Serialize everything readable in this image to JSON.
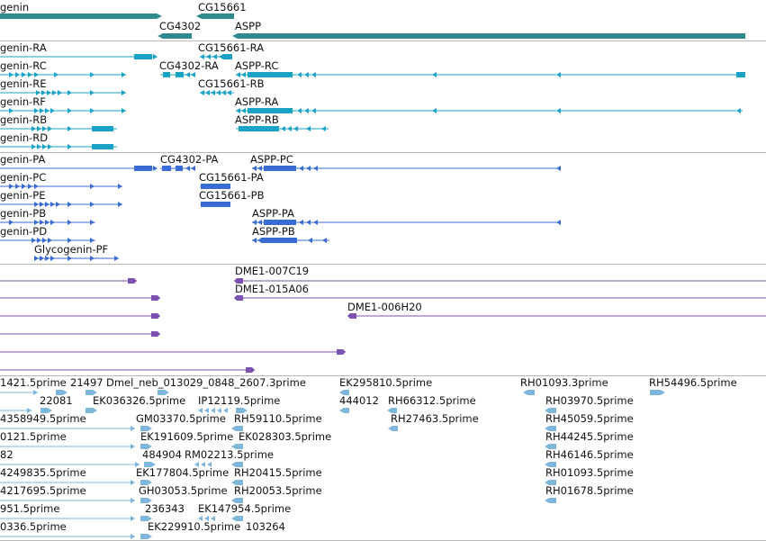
{
  "colors": {
    "gene": "#2e8b8b",
    "transcript_cyan": "#1aa3c4",
    "transcript_blue": "#3a6ad4",
    "clone": "#7b52b0",
    "est": "#7fb7dc",
    "divider": "#b8b8b8"
  },
  "tracks": {
    "genes": {
      "items": [
        {
          "name": "genin",
          "dir": "plus"
        },
        {
          "name": "CG15661",
          "dir": "minus"
        },
        {
          "name": "CG4302",
          "dir": "minus"
        },
        {
          "name": "ASPP",
          "dir": "minus"
        }
      ]
    },
    "transcripts_cyan": {
      "items": [
        {
          "name": "genin-RA"
        },
        {
          "name": "CG15661-RA"
        },
        {
          "name": "genin-RC"
        },
        {
          "name": "CG4302-RA"
        },
        {
          "name": "ASPP-RC"
        },
        {
          "name": "genin-RE"
        },
        {
          "name": "CG15661-RB"
        },
        {
          "name": "genin-RF"
        },
        {
          "name": "ASPP-RA"
        },
        {
          "name": "genin-RB"
        },
        {
          "name": "ASPP-RB"
        },
        {
          "name": "genin-RD"
        }
      ]
    },
    "transcripts_blue": {
      "items": [
        {
          "name": "genin-PA"
        },
        {
          "name": "CG4302-PA"
        },
        {
          "name": "ASPP-PC"
        },
        {
          "name": "genin-PC"
        },
        {
          "name": "CG15661-PA"
        },
        {
          "name": "genin-PE"
        },
        {
          "name": "CG15661-PB"
        },
        {
          "name": "genin-PB"
        },
        {
          "name": "ASPP-PA"
        },
        {
          "name": "genin-PD"
        },
        {
          "name": "ASPP-PB"
        },
        {
          "name": "Glycogenin-PF"
        }
      ]
    },
    "clones": {
      "items": [
        {
          "name": "DME1-007C19"
        },
        {
          "name": "DME1-015A06"
        },
        {
          "name": "DME1-006H20"
        }
      ]
    },
    "ests": {
      "items": [
        {
          "name": "1421.5prime"
        },
        {
          "name": "21497"
        },
        {
          "name": "Dmel_neb_013029_0848_2607.3prime"
        },
        {
          "name": "EK295810.5prime"
        },
        {
          "name": "RH01093.3prime"
        },
        {
          "name": "RH54496.5prime"
        },
        {
          "name": "22081"
        },
        {
          "name": "EK036326.5prime"
        },
        {
          "name": "IP12119.5prime"
        },
        {
          "name": "444012"
        },
        {
          "name": "RH66312.5prime"
        },
        {
          "name": "RH03970.5prime"
        },
        {
          "name": "4358949.5prime"
        },
        {
          "name": "GM03370.5prime"
        },
        {
          "name": "RH59110.5prime"
        },
        {
          "name": "RH27463.5prime"
        },
        {
          "name": "RH45059.5prime"
        },
        {
          "name": "0121.5prime"
        },
        {
          "name": "EK191609.5prime"
        },
        {
          "name": "EK028303.5prime"
        },
        {
          "name": "RH44245.5prime"
        },
        {
          "name": "82"
        },
        {
          "name": "484904"
        },
        {
          "name": "RM02213.5prime"
        },
        {
          "name": "RH46146.5prime"
        },
        {
          "name": "4249835.5prime"
        },
        {
          "name": "EK177804.5prime"
        },
        {
          "name": "RH20415.5prime"
        },
        {
          "name": "RH01093.5prime"
        },
        {
          "name": "4217695.5prime"
        },
        {
          "name": "GH03053.5prime"
        },
        {
          "name": "RH20053.5prime"
        },
        {
          "name": "RH01678.5prime"
        },
        {
          "name": "951.5prime"
        },
        {
          "name": "236343"
        },
        {
          "name": "EK147954.5prime"
        },
        {
          "name": "0336.5prime"
        },
        {
          "name": "EK229910.5prime"
        },
        {
          "name": "103264"
        }
      ]
    }
  }
}
